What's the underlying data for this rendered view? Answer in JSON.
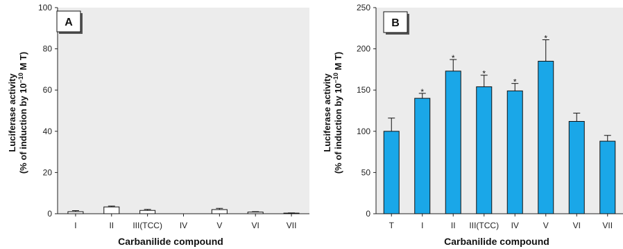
{
  "chart_data": [
    {
      "type": "bar",
      "panel_label": "A",
      "categories": [
        "I",
        "II",
        "III(TCC)",
        "IV",
        "V",
        "VI",
        "VII"
      ],
      "values": [
        1.0,
        3.3,
        1.6,
        0.0,
        2.0,
        0.8,
        0.3
      ],
      "errors": [
        0.5,
        0.4,
        0.5,
        0.0,
        0.6,
        0.2,
        0.1
      ],
      "significant": [
        false,
        false,
        false,
        false,
        false,
        false,
        false
      ],
      "xlabel": "Carbanilide compound",
      "ylabel_line1": "Luciferase activity",
      "ylabel_line2_pre": "(% of induction by 10",
      "ylabel_line2_sup": "−10",
      "ylabel_line2_post": " M T)",
      "ylim": [
        0,
        100
      ],
      "yticks": [
        0,
        20,
        40,
        60,
        80,
        100
      ],
      "bar_color": "#ffffff",
      "background": "#ececec",
      "grid": false
    },
    {
      "type": "bar",
      "panel_label": "B",
      "categories": [
        "T",
        "I",
        "II",
        "III(TCC)",
        "IV",
        "V",
        "VI",
        "VII"
      ],
      "values": [
        100,
        140,
        173,
        154,
        149,
        185,
        112,
        88
      ],
      "errors": [
        16,
        6,
        14,
        14,
        9,
        26,
        10,
        7
      ],
      "significant": [
        false,
        true,
        true,
        true,
        true,
        true,
        false,
        false
      ],
      "significance_marker": "*",
      "xlabel": "Carbanilide compound",
      "ylabel_line1": "Luciferase activity",
      "ylabel_line2_pre": "(% of induction by 10",
      "ylabel_line2_sup": "−10",
      "ylabel_line2_post": " M T)",
      "ylim": [
        0,
        250
      ],
      "yticks": [
        0,
        50,
        100,
        150,
        200,
        250
      ],
      "bar_color": "#1aa7e8",
      "background": "#ececec",
      "grid": false
    }
  ]
}
